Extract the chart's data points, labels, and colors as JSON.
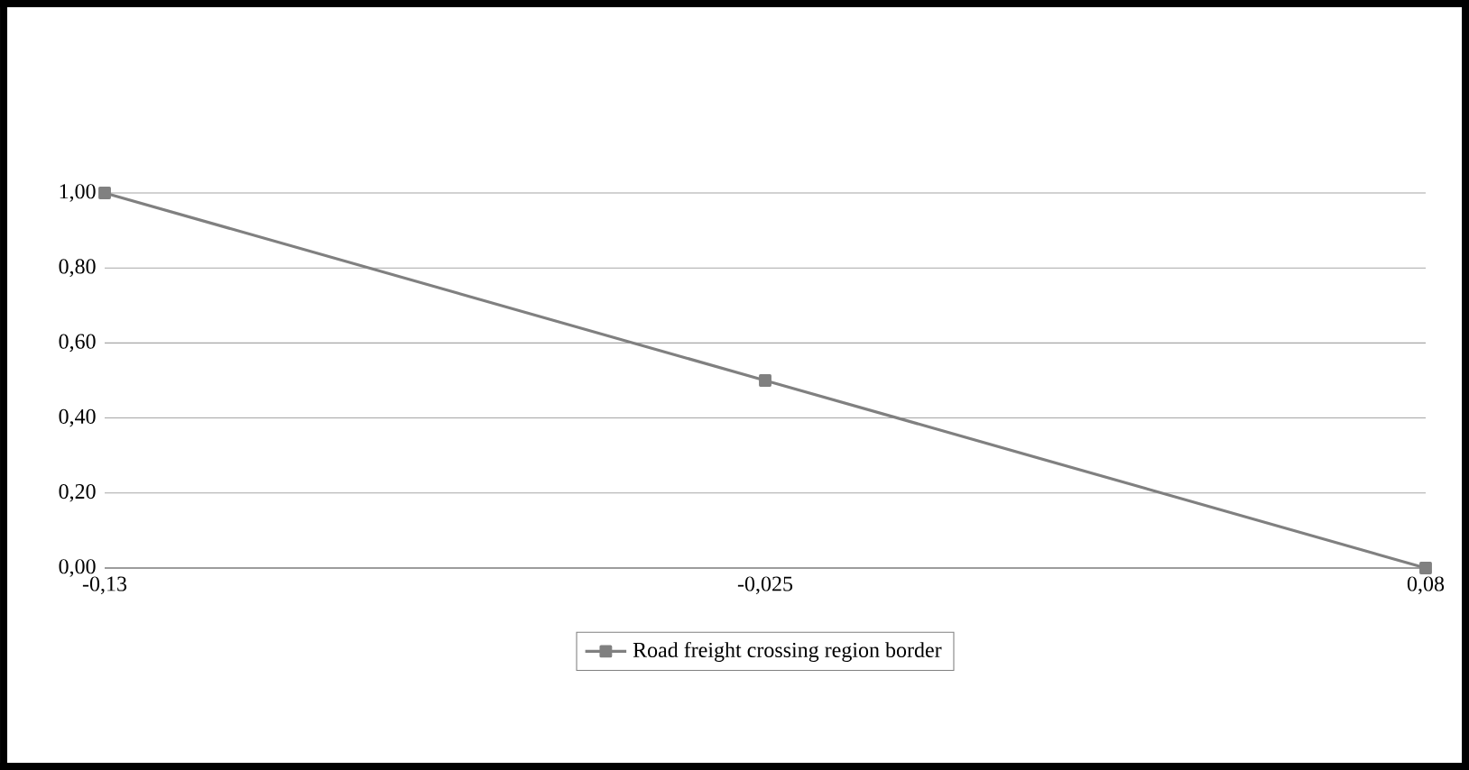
{
  "chart_data": {
    "type": "line",
    "categories": [
      "-0,13",
      "-0,025",
      "0,08"
    ],
    "series": [
      {
        "name": "Road freight crossing region border",
        "color": "#808080",
        "values": [
          1,
          0.5,
          0
        ]
      }
    ],
    "ylim": [
      0,
      1
    ],
    "yticks": [
      {
        "value": 0,
        "label": "0,00"
      },
      {
        "value": 0.2,
        "label": "0,20"
      },
      {
        "value": 0.4,
        "label": "0,40"
      },
      {
        "value": 0.6,
        "label": "0,60"
      },
      {
        "value": 0.8,
        "label": "0,80"
      },
      {
        "value": 1,
        "label": "1,00"
      }
    ],
    "grid": "y",
    "legend": "bottom",
    "marker": "square"
  }
}
